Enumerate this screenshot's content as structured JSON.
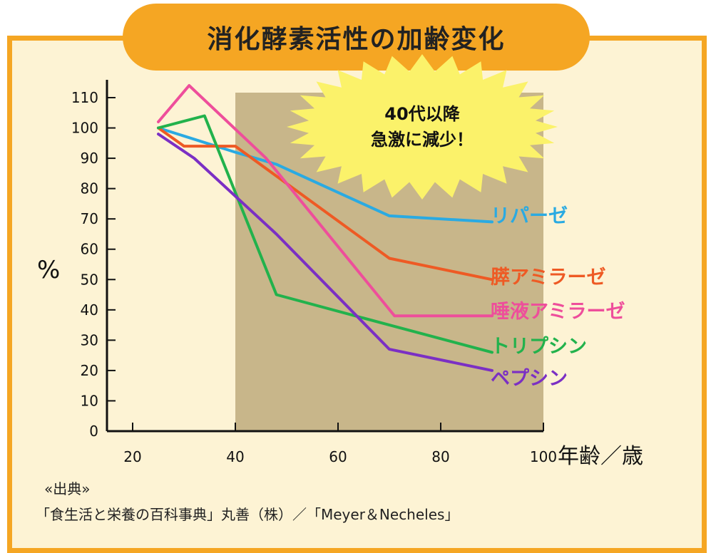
{
  "title": "消化酵素活性の加齢変化",
  "colors": {
    "frame": "#f5a623",
    "background": "#fdf3d4",
    "shade": "#c8b68a",
    "burst": "#fbf26a"
  },
  "burst_text": [
    "40代以降",
    "急激に減少！"
  ],
  "source_label": "«出典»",
  "source_text": "「食生活と栄養の百科事典」丸善（株）／「Meyer＆Necheles」",
  "chart_data": {
    "type": "line",
    "xlabel": "年齢／歳",
    "ylabel": "%",
    "xlim": [
      15,
      100
    ],
    "ylim": [
      0,
      110
    ],
    "xticks": [
      20,
      40,
      60,
      80,
      100
    ],
    "yticks": [
      0,
      10,
      20,
      30,
      40,
      50,
      60,
      70,
      80,
      90,
      100,
      110
    ],
    "highlight_range": [
      40,
      100
    ],
    "series": [
      {
        "name": "リパーゼ",
        "color": "#2aaae2",
        "points": [
          [
            25,
            100
          ],
          [
            40,
            92
          ],
          [
            48,
            88
          ],
          [
            70,
            71
          ],
          [
            90,
            69
          ]
        ]
      },
      {
        "name": "膵アミラーゼ",
        "color": "#ee5a24",
        "points": [
          [
            25,
            100
          ],
          [
            30,
            94
          ],
          [
            40,
            94
          ],
          [
            70,
            57
          ],
          [
            90,
            50
          ]
        ]
      },
      {
        "name": "唾液アミラーゼ",
        "color": "#ee4e9b",
        "points": [
          [
            25,
            102
          ],
          [
            31,
            114
          ],
          [
            46,
            90
          ],
          [
            71,
            38
          ],
          [
            90,
            38
          ]
        ]
      },
      {
        "name": "トリプシン",
        "color": "#22b24c",
        "points": [
          [
            25,
            100
          ],
          [
            34,
            104
          ],
          [
            48,
            45
          ],
          [
            70,
            35
          ],
          [
            90,
            26
          ]
        ]
      },
      {
        "name": "ペプシン",
        "color": "#7b2fc4",
        "points": [
          [
            25,
            98
          ],
          [
            32,
            90
          ],
          [
            48,
            65
          ],
          [
            70,
            27
          ],
          [
            90,
            20
          ]
        ]
      }
    ]
  }
}
